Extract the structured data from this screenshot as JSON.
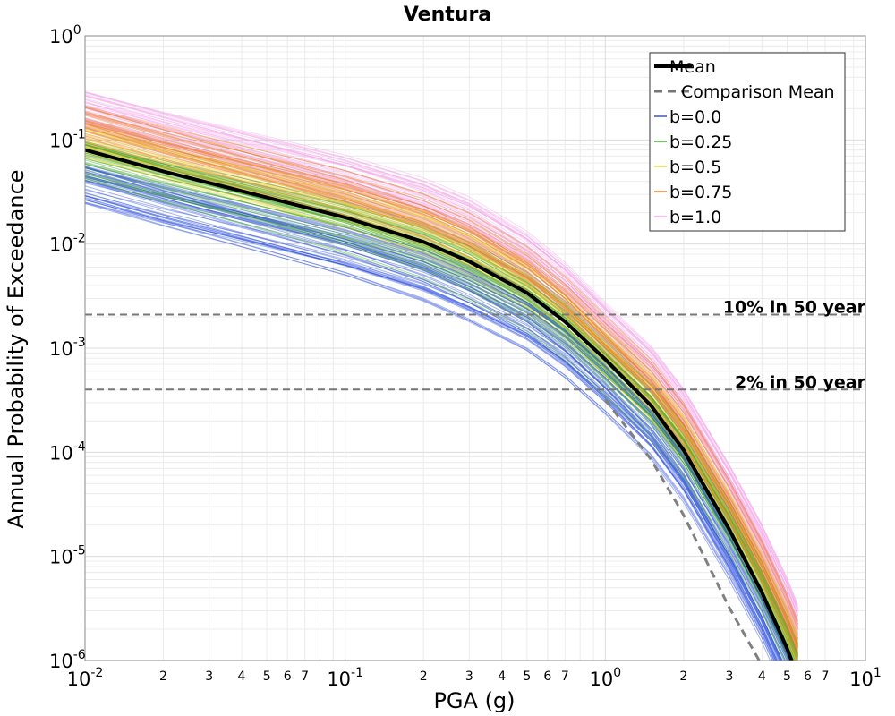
{
  "chart_data": {
    "type": "line",
    "title": "Ventura",
    "xlabel": "PGA (g)",
    "ylabel": "Annual Probability of Exceedance",
    "x_scale": "log",
    "y_scale": "log",
    "xlim": [
      0.01,
      10
    ],
    "ylim": [
      1e-06,
      1
    ],
    "grid": true,
    "legend_position": "top-right",
    "x_major_ticks": [
      {
        "base": "10",
        "exp": "-2",
        "value": 0.01
      },
      {
        "base": "10",
        "exp": "-1",
        "value": 0.1
      },
      {
        "base": "10",
        "exp": "0",
        "value": 1
      },
      {
        "base": "10",
        "exp": "1",
        "value": 10
      }
    ],
    "x_minor_tick_labels": [
      "2",
      "3",
      "4",
      "5",
      "6",
      "7"
    ],
    "y_major_ticks": [
      {
        "base": "10",
        "exp": "0",
        "value": 1
      },
      {
        "base": "10",
        "exp": "-1",
        "value": 0.1
      },
      {
        "base": "10",
        "exp": "-2",
        "value": 0.01
      },
      {
        "base": "10",
        "exp": "-3",
        "value": 0.001
      },
      {
        "base": "10",
        "exp": "-4",
        "value": 0.0001
      },
      {
        "base": "10",
        "exp": "-5",
        "value": 1e-05
      },
      {
        "base": "10",
        "exp": "-6",
        "value": 1e-06
      }
    ],
    "x": [
      0.01,
      0.02,
      0.05,
      0.1,
      0.2,
      0.3,
      0.5,
      0.7,
      1.0,
      1.5,
      2.0,
      3.0,
      4.0,
      5.0,
      5.5
    ],
    "series": [
      {
        "name": "Mean",
        "style": "solid",
        "color": "#000000",
        "values": [
          0.08,
          0.05,
          0.028,
          0.018,
          0.0105,
          0.0068,
          0.0034,
          0.0018,
          0.00078,
          0.00028,
          0.000105,
          1.8e-05,
          4.5e-06,
          1.3e-06,
          7e-07
        ]
      },
      {
        "name": "Comparison Mean",
        "style": "dashed",
        "color": "#808080",
        "values": [
          null,
          null,
          null,
          null,
          null,
          null,
          null,
          null,
          0.00032,
          8.5e-05,
          2.5e-05,
          3.2e-06,
          9e-07,
          null,
          null
        ]
      }
    ],
    "branch_groups": [
      {
        "name": "b=0.0",
        "color": "#3355dd"
      },
      {
        "name": "b=0.25",
        "color": "#44aa33"
      },
      {
        "name": "b=0.5",
        "color": "#e8d840"
      },
      {
        "name": "b=0.75",
        "color": "#ee7f2d"
      },
      {
        "name": "b=1.0",
        "color": "#f5a8e8"
      }
    ],
    "annotations": [
      {
        "text": "10% in 50 year",
        "y": 0.0021
      },
      {
        "text": "2% in 50 year",
        "y": 0.0004
      }
    ]
  }
}
